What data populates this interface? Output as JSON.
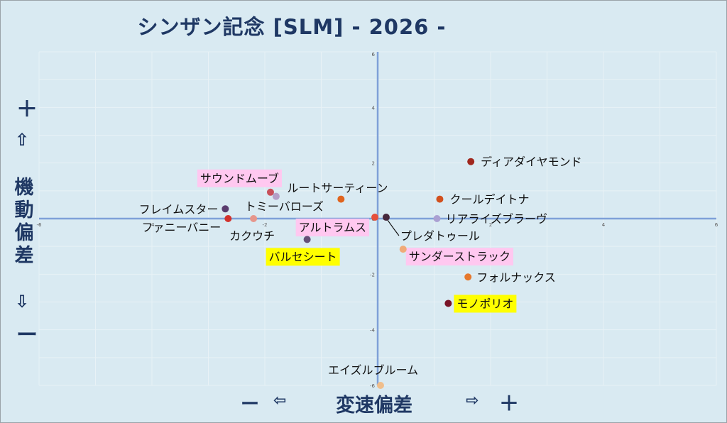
{
  "chart_data": {
    "type": "scatter",
    "title": "シンザン記念 [SLM]  - 2026 -",
    "xlabel": "変速偏差",
    "ylabel": "機動偏差",
    "x_minus": "ー",
    "x_left_arrow": "⇦",
    "x_right_arrow": "⇨",
    "x_plus": "＋",
    "y_plus": "＋",
    "y_up_arrow": "⇧",
    "y_down_arrow": "⇩",
    "y_minus": "ー",
    "xlim": [
      -6,
      6
    ],
    "ylim": [
      -6,
      6
    ],
    "xticks": [
      -6,
      -4,
      -2,
      0,
      2,
      4,
      6
    ],
    "yticks": [
      -6,
      -4,
      -2,
      0,
      2,
      4,
      6
    ],
    "grid": true,
    "series": [
      {
        "label": "ディアダイヤモンド",
        "x": 1.65,
        "y": 2.05,
        "color": "#a0281e",
        "highlight": null
      },
      {
        "label": "サウンドムーブ",
        "x": -1.9,
        "y": 0.95,
        "color": "#c8505a",
        "highlight": "#ffc8f0"
      },
      {
        "label": "ルートサーティーン",
        "x": -0.65,
        "y": 0.7,
        "color": "#e0641e",
        "highlight": null
      },
      {
        "label": "トミーバローズ",
        "x": -1.8,
        "y": 0.8,
        "color": "#b4a0c8",
        "highlight": null
      },
      {
        "label": "クールデイトナ",
        "x": 1.1,
        "y": 0.7,
        "color": "#d2501e",
        "highlight": null
      },
      {
        "label": "フレイムスター",
        "x": -2.7,
        "y": 0.35,
        "color": "#5a3c6e",
        "highlight": null
      },
      {
        "label": "リアライズブラーヴ",
        "x": 1.05,
        "y": 0.0,
        "color": "#aaa0d2",
        "highlight": null
      },
      {
        "label": "ファニーバニー",
        "x": -2.65,
        "y": 0.0,
        "color": "#d2322d",
        "highlight": null
      },
      {
        "label": "カクウチ",
        "x": -2.2,
        "y": 0.0,
        "color": "#e6968c",
        "highlight": null
      },
      {
        "label": "アルトラムス",
        "x": -0.05,
        "y": 0.05,
        "color": "#e6503c",
        "highlight": "#ffc8f0"
      },
      {
        "label": "プレダトゥール",
        "x": 0.15,
        "y": 0.05,
        "color": "#46283c",
        "highlight": null
      },
      {
        "label": "バルセシート",
        "x": -1.25,
        "y": -0.75,
        "color": "#645078",
        "highlight": "#ffff00"
      },
      {
        "label": "サンダーストラック",
        "x": 0.45,
        "y": -1.1,
        "color": "#f0aa78",
        "highlight": "#ffc8f0"
      },
      {
        "label": "フォルナックス",
        "x": 1.6,
        "y": -2.1,
        "color": "#e6782d",
        "highlight": null
      },
      {
        "label": "モノポリオ",
        "x": 1.25,
        "y": -3.05,
        "color": "#781428",
        "highlight": "#ffff00"
      },
      {
        "label": "エイズルブルーム",
        "x": 0.05,
        "y": -6.0,
        "color": "#f0be8c",
        "highlight": null
      }
    ]
  }
}
